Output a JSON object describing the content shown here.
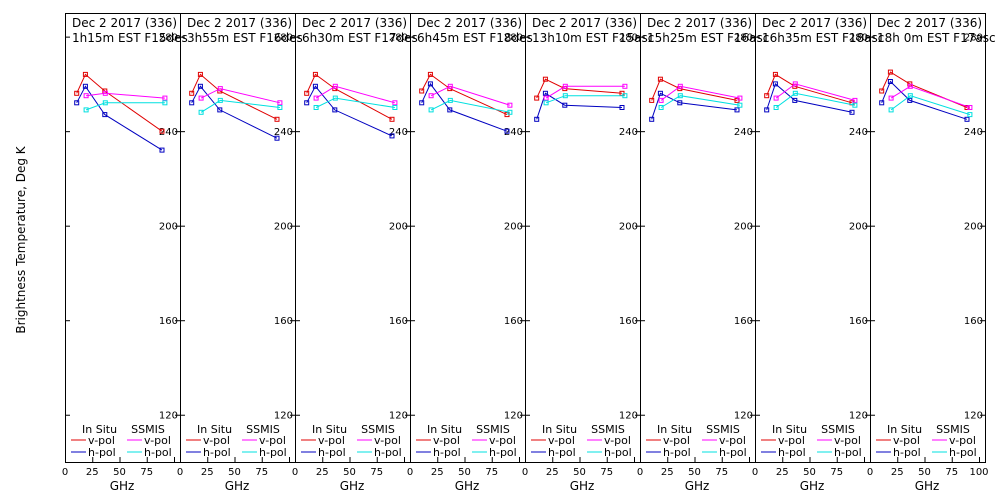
{
  "chart_data": {
    "type": "line",
    "ylabel": "Brightness Temperature, Deg K",
    "xlabel": "GHz",
    "ylim": [
      100,
      290
    ],
    "xlim": [
      0,
      100
    ],
    "yticks": [
      120,
      160,
      200,
      240,
      280
    ],
    "xticks": [
      0,
      25,
      50,
      75,
      100
    ],
    "xtick_labels": [
      "0",
      "25",
      "50",
      "75",
      "100"
    ],
    "legend": {
      "left_header": "In Situ",
      "right_header": "SSMIS",
      "vpol": "v-pol",
      "hpol": "h-pol"
    },
    "colors": {
      "insitu_v": "#e00000",
      "insitu_h": "#0000c0",
      "ssmis_v": "#ff00ff",
      "ssmis_h": "#00e0e0"
    },
    "panels": [
      {
        "title_line1": "Dec 2 2017 (336)",
        "title_line2": "1h15m  EST  F15des",
        "series": [
          {
            "name": "In Situ v-pol",
            "x": [
              10.7,
              18.7,
              36.5,
              89
            ],
            "y": [
              256,
              264,
              257,
              240
            ]
          },
          {
            "name": "In Situ h-pol",
            "x": [
              10.7,
              18.7,
              36.5,
              89
            ],
            "y": [
              252,
              259,
              247,
              232
            ]
          },
          {
            "name": "SSMIS v-pol",
            "x": [
              19.35,
              37,
              91.65
            ],
            "y": [
              255,
              256,
              254
            ]
          },
          {
            "name": "SSMIS h-pol",
            "x": [
              19.35,
              37,
              91.65
            ],
            "y": [
              249,
              252,
              252
            ]
          }
        ]
      },
      {
        "title_line1": "Dec 2 2017 (336)",
        "title_line2": "3h55m  EST  F16des",
        "series": [
          {
            "name": "In Situ v-pol",
            "x": [
              10.7,
              18.7,
              36.5,
              89
            ],
            "y": [
              256,
              264,
              257,
              245
            ]
          },
          {
            "name": "In Situ h-pol",
            "x": [
              10.7,
              18.7,
              36.5,
              89
            ],
            "y": [
              252,
              259,
              249,
              237
            ]
          },
          {
            "name": "SSMIS v-pol",
            "x": [
              19.35,
              37,
              91.65
            ],
            "y": [
              254,
              258,
              252
            ]
          },
          {
            "name": "SSMIS h-pol",
            "x": [
              19.35,
              37,
              91.65
            ],
            "y": [
              248,
              253,
              250
            ]
          }
        ]
      },
      {
        "title_line1": "Dec 2 2017 (336)",
        "title_line2": "6h30m  EST  F17des",
        "series": [
          {
            "name": "In Situ v-pol",
            "x": [
              10.7,
              18.7,
              36.5,
              89
            ],
            "y": [
              256,
              264,
              258,
              245
            ]
          },
          {
            "name": "In Situ h-pol",
            "x": [
              10.7,
              18.7,
              36.5,
              89
            ],
            "y": [
              252,
              259,
              249,
              238
            ]
          },
          {
            "name": "SSMIS v-pol",
            "x": [
              19.35,
              37,
              91.65
            ],
            "y": [
              254,
              259,
              252
            ]
          },
          {
            "name": "SSMIS h-pol",
            "x": [
              19.35,
              37,
              91.65
            ],
            "y": [
              250,
              254,
              250
            ]
          }
        ]
      },
      {
        "title_line1": "Dec 2 2017 (336)",
        "title_line2": "6h45m  EST  F18des",
        "series": [
          {
            "name": "In Situ v-pol",
            "x": [
              10.7,
              18.7,
              36.5,
              89
            ],
            "y": [
              257,
              264,
              258,
              247
            ]
          },
          {
            "name": "In Situ h-pol",
            "x": [
              10.7,
              18.7,
              36.5,
              89
            ],
            "y": [
              252,
              260,
              249,
              240
            ]
          },
          {
            "name": "SSMIS v-pol",
            "x": [
              19.35,
              37,
              91.65
            ],
            "y": [
              255,
              259,
              251
            ]
          },
          {
            "name": "SSMIS h-pol",
            "x": [
              19.35,
              37,
              91.65
            ],
            "y": [
              249,
              253,
              248
            ]
          }
        ]
      },
      {
        "title_line1": "Dec 2 2017 (336)",
        "title_line2": "13h10m  EST  F15asc",
        "series": [
          {
            "name": "In Situ v-pol",
            "x": [
              10.7,
              18.7,
              36.5,
              89
            ],
            "y": [
              254,
              262,
              258,
              256
            ]
          },
          {
            "name": "In Situ h-pol",
            "x": [
              10.7,
              18.7,
              36.5,
              89
            ],
            "y": [
              245,
              256,
              251,
              250
            ]
          },
          {
            "name": "SSMIS v-pol",
            "x": [
              19.35,
              37,
              91.65
            ],
            "y": [
              254,
              259,
              259
            ]
          },
          {
            "name": "SSMIS h-pol",
            "x": [
              19.35,
              37,
              91.65
            ],
            "y": [
              252,
              255,
              255
            ]
          }
        ]
      },
      {
        "title_line1": "Dec 2 2017 (336)",
        "title_line2": "15h25m  EST  F16asc",
        "series": [
          {
            "name": "In Situ v-pol",
            "x": [
              10.7,
              18.7,
              36.5,
              89
            ],
            "y": [
              253,
              262,
              258,
              253
            ]
          },
          {
            "name": "In Situ h-pol",
            "x": [
              10.7,
              18.7,
              36.5,
              89
            ],
            "y": [
              245,
              256,
              252,
              249
            ]
          },
          {
            "name": "SSMIS v-pol",
            "x": [
              19.35,
              37,
              91.65
            ],
            "y": [
              253,
              259,
              254
            ]
          },
          {
            "name": "SSMIS h-pol",
            "x": [
              19.35,
              37,
              91.65
            ],
            "y": [
              250,
              255,
              251
            ]
          }
        ]
      },
      {
        "title_line1": "Dec 2 2017 (336)",
        "title_line2": "16h35m  EST  F18asc",
        "series": [
          {
            "name": "In Situ v-pol",
            "x": [
              10.7,
              18.7,
              36.5,
              89
            ],
            "y": [
              255,
              264,
              259,
              252
            ]
          },
          {
            "name": "In Situ h-pol",
            "x": [
              10.7,
              18.7,
              36.5,
              89
            ],
            "y": [
              249,
              260,
              253,
              248
            ]
          },
          {
            "name": "SSMIS v-pol",
            "x": [
              19.35,
              37,
              91.65
            ],
            "y": [
              254,
              260,
              253
            ]
          },
          {
            "name": "SSMIS h-pol",
            "x": [
              19.35,
              37,
              91.65
            ],
            "y": [
              250,
              256,
              251
            ]
          }
        ]
      },
      {
        "title_line1": "Dec 2 2017 (336)",
        "title_line2": "18h 0m  EST  F17asc",
        "series": [
          {
            "name": "In Situ v-pol",
            "x": [
              10.7,
              18.7,
              36.5,
              89
            ],
            "y": [
              257,
              265,
              260,
              250
            ]
          },
          {
            "name": "In Situ h-pol",
            "x": [
              10.7,
              18.7,
              36.5,
              89
            ],
            "y": [
              252,
              261,
              253,
              245
            ]
          },
          {
            "name": "SSMIS v-pol",
            "x": [
              19.35,
              37,
              91.65
            ],
            "y": [
              254,
              259,
              250
            ]
          },
          {
            "name": "SSMIS h-pol",
            "x": [
              19.35,
              37,
              91.65
            ],
            "y": [
              249,
              255,
              247
            ]
          }
        ]
      }
    ]
  }
}
